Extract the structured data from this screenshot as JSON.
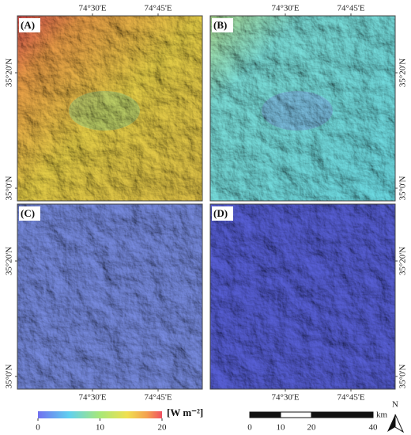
{
  "panels": [
    {
      "label": "(A)"
    },
    {
      "label": "(B)"
    },
    {
      "label": "(C)"
    },
    {
      "label": "(D)"
    }
  ],
  "lon_labels": [
    "74°30'E",
    "74°45'E"
  ],
  "lat_labels": [
    "35°20'N",
    "35°0'N"
  ],
  "colorbar": {
    "lim": [
      0,
      20
    ],
    "ticks": [
      0,
      10,
      20
    ],
    "unit": "[W m⁻²]"
  },
  "scale_bar": {
    "lim": [
      0,
      40
    ],
    "ticks": [
      0,
      10,
      20,
      40
    ],
    "unit": "km"
  },
  "north": "N"
}
